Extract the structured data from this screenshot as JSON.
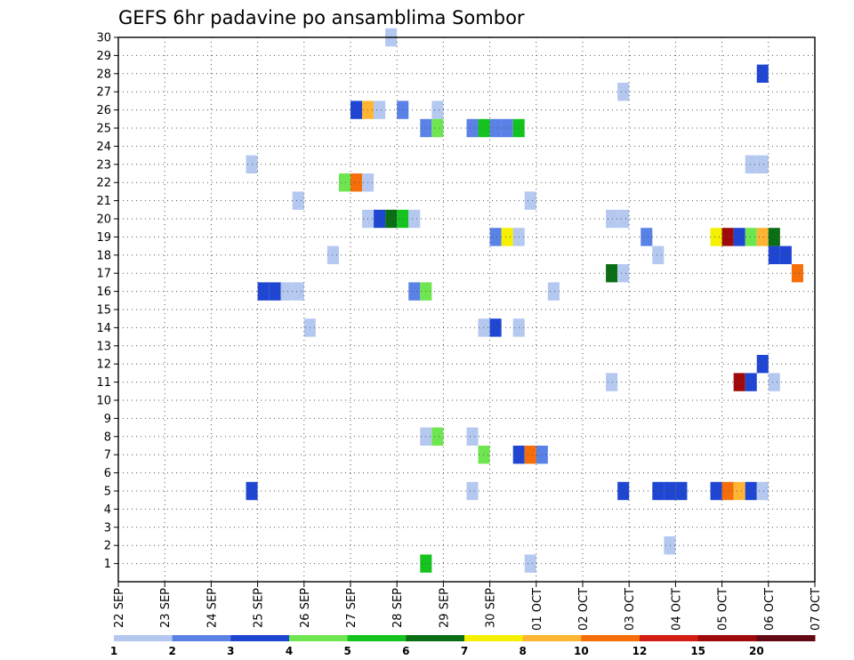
{
  "chart_data": {
    "type": "heatmap",
    "title": "GEFS 6hr padavine po ansamblima Sombor",
    "x_ticks": [
      "22 SEP",
      "23 SEP",
      "24 SEP",
      "25 SEP",
      "26 SEP",
      "27 SEP",
      "28 SEP",
      "29 SEP",
      "30 SEP",
      "01 OCT",
      "02 OCT",
      "03 OCT",
      "04 OCT",
      "05 OCT",
      "06 OCT",
      "07 OCT"
    ],
    "xlim": [
      "22 SEP 00",
      "07 OCT 00"
    ],
    "time_step_hours": 6,
    "y_ticks": [
      1,
      2,
      3,
      4,
      5,
      6,
      7,
      8,
      9,
      10,
      11,
      12,
      13,
      14,
      15,
      16,
      17,
      18,
      19,
      20,
      21,
      22,
      23,
      24,
      25,
      26,
      27,
      28,
      29,
      30
    ],
    "ylim": [
      0,
      30
    ],
    "grid": true,
    "colorbar": {
      "labels": [
        "1",
        "2",
        "3",
        "4",
        "5",
        "6",
        "7",
        "8",
        "10",
        "12",
        "15",
        "20"
      ],
      "colors": [
        "#b4c8f0",
        "#5a82e6",
        "#1e46d2",
        "#6ee650",
        "#14c31e",
        "#0a6e14",
        "#f5f000",
        "#ffb432",
        "#f56e0a",
        "#d21e14",
        "#a00a0a",
        "#640a14"
      ]
    },
    "cells": [
      {
        "member": 30,
        "time": "27 SEP 18",
        "class": 0
      },
      {
        "member": 28,
        "time": "05 OCT 18",
        "class": 2
      },
      {
        "member": 27,
        "time": "02 OCT 18",
        "class": 0
      },
      {
        "member": 26,
        "time": "27 SEP 00",
        "class": 2
      },
      {
        "member": 26,
        "time": "27 SEP 06",
        "class": 7
      },
      {
        "member": 26,
        "time": "27 SEP 12",
        "class": 0
      },
      {
        "member": 26,
        "time": "28 SEP 00",
        "class": 1
      },
      {
        "member": 26,
        "time": "28 SEP 18",
        "class": 0
      },
      {
        "member": 25,
        "time": "28 SEP 12",
        "class": 1
      },
      {
        "member": 25,
        "time": "28 SEP 18",
        "class": 3
      },
      {
        "member": 25,
        "time": "29 SEP 12",
        "class": 1
      },
      {
        "member": 25,
        "time": "29 SEP 18",
        "class": 4
      },
      {
        "member": 25,
        "time": "30 SEP 00",
        "class": 1
      },
      {
        "member": 25,
        "time": "30 SEP 06",
        "class": 1
      },
      {
        "member": 25,
        "time": "30 SEP 12",
        "class": 4
      },
      {
        "member": 23,
        "time": "24 SEP 18",
        "class": 0
      },
      {
        "member": 23,
        "time": "05 OCT 12",
        "class": 0
      },
      {
        "member": 23,
        "time": "05 OCT 18",
        "class": 0
      },
      {
        "member": 22,
        "time": "26 SEP 18",
        "class": 3
      },
      {
        "member": 22,
        "time": "27 SEP 00",
        "class": 8
      },
      {
        "member": 22,
        "time": "27 SEP 06",
        "class": 0
      },
      {
        "member": 21,
        "time": "25 SEP 18",
        "class": 0
      },
      {
        "member": 21,
        "time": "30 SEP 18",
        "class": 0
      },
      {
        "member": 20,
        "time": "27 SEP 06",
        "class": 0
      },
      {
        "member": 20,
        "time": "27 SEP 12",
        "class": 2
      },
      {
        "member": 20,
        "time": "27 SEP 18",
        "class": 5
      },
      {
        "member": 20,
        "time": "28 SEP 00",
        "class": 4
      },
      {
        "member": 20,
        "time": "28 SEP 06",
        "class": 0
      },
      {
        "member": 20,
        "time": "02 OCT 12",
        "class": 0
      },
      {
        "member": 20,
        "time": "02 OCT 18",
        "class": 0
      },
      {
        "member": 19,
        "time": "30 SEP 00",
        "class": 1
      },
      {
        "member": 19,
        "time": "30 SEP 06",
        "class": 6
      },
      {
        "member": 19,
        "time": "30 SEP 12",
        "class": 0
      },
      {
        "member": 19,
        "time": "03 OCT 06",
        "class": 1
      },
      {
        "member": 19,
        "time": "04 OCT 18",
        "class": 6
      },
      {
        "member": 19,
        "time": "05 OCT 00",
        "class": 10
      },
      {
        "member": 19,
        "time": "05 OCT 06",
        "class": 2
      },
      {
        "member": 19,
        "time": "05 OCT 12",
        "class": 3
      },
      {
        "member": 19,
        "time": "05 OCT 18",
        "class": 7
      },
      {
        "member": 19,
        "time": "06 OCT 00",
        "class": 5
      },
      {
        "member": 18,
        "time": "26 SEP 12",
        "class": 0
      },
      {
        "member": 18,
        "time": "03 OCT 12",
        "class": 0
      },
      {
        "member": 18,
        "time": "06 OCT 00",
        "class": 2
      },
      {
        "member": 18,
        "time": "06 OCT 06",
        "class": 2
      },
      {
        "member": 17,
        "time": "02 OCT 12",
        "class": 5
      },
      {
        "member": 17,
        "time": "02 OCT 18",
        "class": 0
      },
      {
        "member": 17,
        "time": "06 OCT 12",
        "class": 8
      },
      {
        "member": 16,
        "time": "25 SEP 00",
        "class": 2
      },
      {
        "member": 16,
        "time": "25 SEP 06",
        "class": 2
      },
      {
        "member": 16,
        "time": "25 SEP 12",
        "class": 0
      },
      {
        "member": 16,
        "time": "25 SEP 18",
        "class": 0
      },
      {
        "member": 16,
        "time": "28 SEP 06",
        "class": 1
      },
      {
        "member": 16,
        "time": "28 SEP 12",
        "class": 3
      },
      {
        "member": 16,
        "time": "01 OCT 06",
        "class": 0
      },
      {
        "member": 14,
        "time": "26 SEP 00",
        "class": 0
      },
      {
        "member": 14,
        "time": "29 SEP 18",
        "class": 0
      },
      {
        "member": 14,
        "time": "30 SEP 00",
        "class": 2
      },
      {
        "member": 14,
        "time": "30 SEP 12",
        "class": 0
      },
      {
        "member": 12,
        "time": "05 OCT 18",
        "class": 2
      },
      {
        "member": 11,
        "time": "02 OCT 12",
        "class": 0
      },
      {
        "member": 11,
        "time": "05 OCT 06",
        "class": 10
      },
      {
        "member": 11,
        "time": "05 OCT 12",
        "class": 2
      },
      {
        "member": 11,
        "time": "06 OCT 00",
        "class": 0
      },
      {
        "member": 8,
        "time": "28 SEP 12",
        "class": 0
      },
      {
        "member": 8,
        "time": "28 SEP 18",
        "class": 3
      },
      {
        "member": 8,
        "time": "29 SEP 12",
        "class": 0
      },
      {
        "member": 7,
        "time": "29 SEP 18",
        "class": 3
      },
      {
        "member": 7,
        "time": "30 SEP 12",
        "class": 2
      },
      {
        "member": 7,
        "time": "30 SEP 18",
        "class": 8
      },
      {
        "member": 7,
        "time": "01 OCT 00",
        "class": 1
      },
      {
        "member": 5,
        "time": "24 SEP 18",
        "class": 2
      },
      {
        "member": 5,
        "time": "29 SEP 12",
        "class": 0
      },
      {
        "member": 5,
        "time": "02 OCT 18",
        "class": 2
      },
      {
        "member": 5,
        "time": "03 OCT 12",
        "class": 2
      },
      {
        "member": 5,
        "time": "03 OCT 18",
        "class": 2
      },
      {
        "member": 5,
        "time": "04 OCT 00",
        "class": 2
      },
      {
        "member": 5,
        "time": "04 OCT 18",
        "class": 2
      },
      {
        "member": 5,
        "time": "05 OCT 00",
        "class": 8
      },
      {
        "member": 5,
        "time": "05 OCT 06",
        "class": 7
      },
      {
        "member": 5,
        "time": "05 OCT 12",
        "class": 2
      },
      {
        "member": 5,
        "time": "05 OCT 18",
        "class": 0
      },
      {
        "member": 2,
        "time": "03 OCT 18",
        "class": 0
      },
      {
        "member": 1,
        "time": "28 SEP 12",
        "class": 4
      },
      {
        "member": 1,
        "time": "30 SEP 18",
        "class": 0
      }
    ]
  }
}
